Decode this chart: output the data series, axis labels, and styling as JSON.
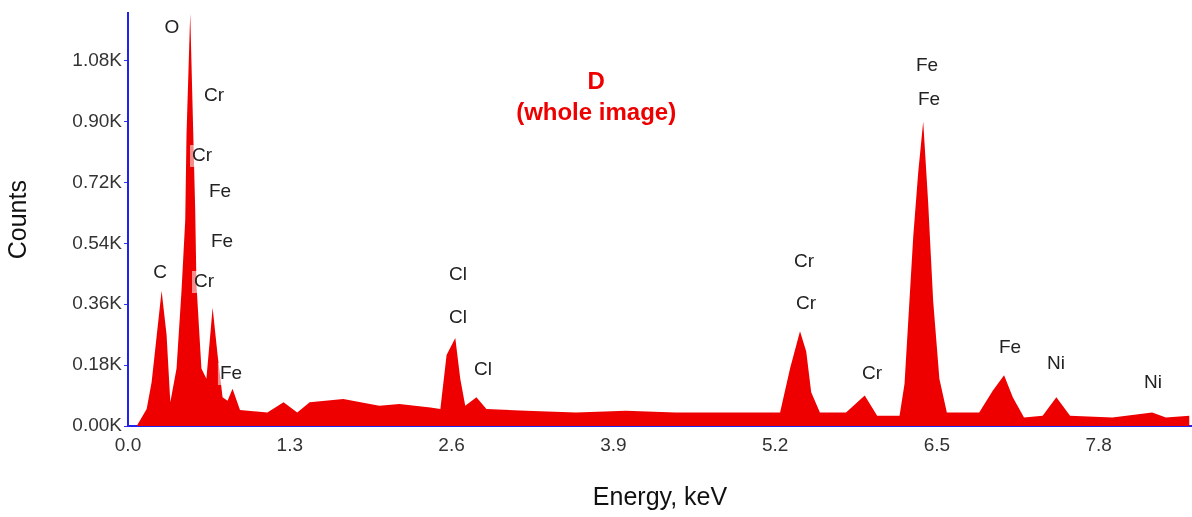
{
  "chart_data": {
    "type": "area",
    "title": "D",
    "subtitle": "(whole image)",
    "xlabel": "Energy, keV",
    "ylabel": "Counts",
    "xlim": [
      0,
      8.55
    ],
    "xticks": [
      {
        "value": 0,
        "label": "0.0"
      },
      1.3,
      2.6,
      3.9,
      5.2,
      6.5,
      7.8
    ],
    "ylim": [
      0,
      1.22
    ],
    "yticks": [
      {
        "value": 0,
        "label": "0.00K"
      },
      {
        "value": 0.18,
        "label": "0.18K"
      },
      {
        "value": 0.36,
        "label": "0.36K"
      },
      {
        "value": 0.54,
        "label": "0.54K"
      },
      {
        "value": 0.72,
        "label": "0.72K"
      },
      {
        "value": 0.9,
        "label": "0.90K"
      },
      {
        "value": 1.08,
        "label": "1.08K"
      }
    ],
    "grid": false,
    "legend": false,
    "marker": "none",
    "series": [
      {
        "color": "#ee0000",
        "x": [
          0.07,
          0.15,
          0.19,
          0.27,
          0.31,
          0.34,
          0.39,
          0.43,
          0.46,
          0.47,
          0.5,
          0.54,
          0.55,
          0.59,
          0.63,
          0.68,
          0.72,
          0.76,
          0.8,
          0.84,
          0.9,
          1.12,
          1.25,
          1.36,
          1.46,
          1.73,
          2.02,
          2.18,
          2.43,
          2.51,
          2.56,
          2.63,
          2.67,
          2.71,
          2.8,
          2.88,
          3.2,
          3.6,
          4.0,
          4.4,
          4.8,
          5.1,
          5.24,
          5.32,
          5.4,
          5.45,
          5.49,
          5.56,
          5.77,
          5.92,
          6.02,
          6.2,
          6.24,
          6.31,
          6.35,
          6.39,
          6.43,
          6.47,
          6.52,
          6.58,
          6.84,
          6.95,
          7.04,
          7.11,
          7.2,
          7.35,
          7.46,
          7.57,
          7.91,
          8.23,
          8.34,
          8.53
        ],
        "values": [
          0,
          0.05,
          0.13,
          0.4,
          0.27,
          0.07,
          0.17,
          0.4,
          0.61,
          0.86,
          1.22,
          0.64,
          0.42,
          0.17,
          0.14,
          0.35,
          0.21,
          0.085,
          0.075,
          0.11,
          0.047,
          0.04,
          0.07,
          0.04,
          0.07,
          0.08,
          0.06,
          0.065,
          0.055,
          0.05,
          0.21,
          0.26,
          0.14,
          0.06,
          0.085,
          0.05,
          0.045,
          0.04,
          0.045,
          0.04,
          0.04,
          0.04,
          0.04,
          0.17,
          0.28,
          0.22,
          0.1,
          0.04,
          0.04,
          0.09,
          0.03,
          0.03,
          0.125,
          0.56,
          0.75,
          0.9,
          0.66,
          0.37,
          0.14,
          0.04,
          0.04,
          0.105,
          0.15,
          0.085,
          0.025,
          0.03,
          0.085,
          0.03,
          0.025,
          0.04,
          0.025,
          0.03
        ]
      }
    ],
    "annotations": [
      "O",
      "Cr",
      "Cr",
      "Fe",
      "Fe",
      "C",
      "Cr",
      "Fe",
      "Cl",
      "Cl",
      "Cl",
      "Cr",
      "Cr",
      "Cr",
      "Fe",
      "Fe",
      "Fe",
      "Ni",
      "Ni"
    ]
  }
}
